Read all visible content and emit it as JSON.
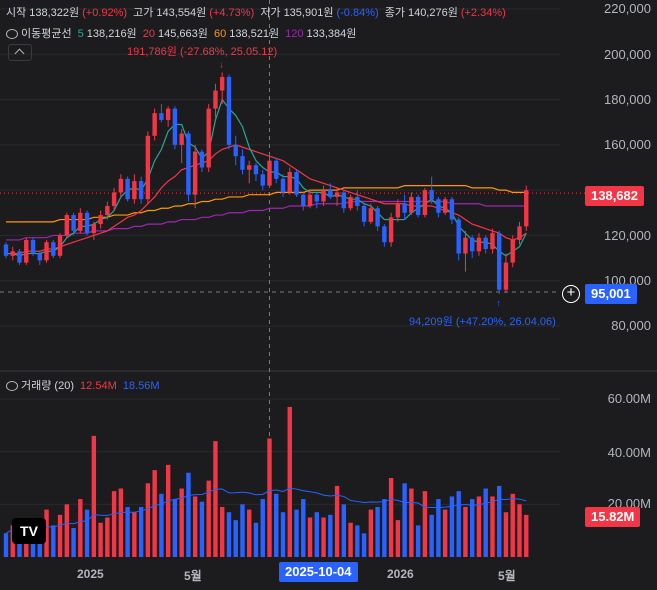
{
  "legend": {
    "open_label": "시작",
    "open_value": "138,322원",
    "open_change": "(+0.92%)",
    "high_label": "고가",
    "high_value": "143,554원",
    "high_change": "(+4.73%)",
    "low_label": "저가",
    "low_value": "135,901원",
    "low_change": "(-0.84%)",
    "close_label": "종가",
    "close_value": "140,276원",
    "close_change": "(+2.34%)",
    "ma_label": "이동평균선",
    "ma5_period": "5",
    "ma5_value": "138,216원",
    "ma20_period": "20",
    "ma20_value": "145,663원",
    "ma60_period": "60",
    "ma60_value": "138,521원",
    "ma120_period": "120",
    "ma120_value": "133,384원"
  },
  "volume_legend": {
    "label": "거래량 (20)",
    "value": "12.54M",
    "ma_value": "18.56M"
  },
  "annotations": {
    "high": "191,786원 (-27.68%, 25.05.12)",
    "low": "94,209원 (+47.20%, 26.04.06)"
  },
  "price_tags": {
    "last": "138,682",
    "crosshair": "95,001",
    "volume_last": "15.82M"
  },
  "crosshair_date": "2025-10-04",
  "logo_text": "TV",
  "colors": {
    "up": "#f23645",
    "down": "#2962ff",
    "ma5": "#26a69a",
    "ma20": "#f23645",
    "ma60": "#ff9800",
    "ma120": "#9c27b0",
    "vol_ma": "#2962ff"
  },
  "chart_data": {
    "type": "candlestick",
    "y_axis_ticks": [
      "220,000",
      "200,000",
      "180,000",
      "160,000",
      "140,000",
      "120,000",
      "100,000",
      "80,000"
    ],
    "ylim": [
      70000,
      225000
    ],
    "volume_axis_ticks": [
      "60.00M",
      "40.00M",
      "20.00M"
    ],
    "volume_ylim": [
      0,
      70000000
    ],
    "x_axis_labels": [
      "2025",
      "5월",
      "2026",
      "5월"
    ],
    "weeks": 78,
    "candles": [
      [
        116000,
        117000,
        110000,
        111000
      ],
      [
        111000,
        115000,
        109000,
        113000
      ],
      [
        113000,
        114000,
        107000,
        108000
      ],
      [
        108000,
        119000,
        107000,
        118000
      ],
      [
        118000,
        119000,
        111000,
        112000
      ],
      [
        112000,
        113000,
        107000,
        109000
      ],
      [
        109000,
        118000,
        108000,
        117000
      ],
      [
        117000,
        118000,
        110000,
        111000
      ],
      [
        111000,
        121000,
        110000,
        120000
      ],
      [
        120000,
        130000,
        119000,
        129000
      ],
      [
        129000,
        130000,
        120000,
        122000
      ],
      [
        122000,
        132000,
        121000,
        130000
      ],
      [
        130000,
        131000,
        120000,
        121000
      ],
      [
        121000,
        126000,
        118000,
        125000
      ],
      [
        125000,
        131000,
        123000,
        129000
      ],
      [
        129000,
        135000,
        127000,
        133000
      ],
      [
        133000,
        141000,
        131000,
        139000
      ],
      [
        139000,
        147000,
        137000,
        145000
      ],
      [
        145000,
        146000,
        135000,
        136000
      ],
      [
        136000,
        147000,
        134000,
        144000
      ],
      [
        144000,
        146000,
        134000,
        136000
      ],
      [
        136000,
        166000,
        134000,
        164000
      ],
      [
        164000,
        176000,
        162000,
        174000
      ],
      [
        174000,
        178000,
        170000,
        171000
      ],
      [
        171000,
        177000,
        168000,
        176000
      ],
      [
        176000,
        177000,
        158000,
        160000
      ],
      [
        160000,
        167000,
        152000,
        165000
      ],
      [
        165000,
        166000,
        135000,
        138000
      ],
      [
        138000,
        160000,
        132000,
        157000
      ],
      [
        157000,
        158000,
        148000,
        150000
      ],
      [
        150000,
        178000,
        148000,
        176000
      ],
      [
        176000,
        187000,
        172000,
        184000
      ],
      [
        184000,
        192000,
        178000,
        190000
      ],
      [
        190000,
        191000,
        158000,
        160000
      ],
      [
        160000,
        164000,
        151000,
        155000
      ],
      [
        155000,
        158000,
        147000,
        149000
      ],
      [
        149000,
        153000,
        143000,
        151000
      ],
      [
        151000,
        152000,
        144000,
        147000
      ],
      [
        147000,
        149000,
        140000,
        142000
      ],
      [
        142000,
        156000,
        141000,
        153000
      ],
      [
        153000,
        154000,
        143000,
        145000
      ],
      [
        145000,
        147000,
        137000,
        139000
      ],
      [
        139000,
        150000,
        138000,
        148000
      ],
      [
        148000,
        149000,
        137000,
        138000
      ],
      [
        138000,
        139000,
        131000,
        133000
      ],
      [
        133000,
        140000,
        132000,
        138000
      ],
      [
        138000,
        139000,
        132000,
        135000
      ],
      [
        135000,
        142000,
        133000,
        140000
      ],
      [
        140000,
        143000,
        136000,
        137000
      ],
      [
        137000,
        141000,
        133000,
        139000
      ],
      [
        139000,
        140000,
        130000,
        132000
      ],
      [
        132000,
        138000,
        131000,
        137000
      ],
      [
        137000,
        140000,
        131000,
        133000
      ],
      [
        133000,
        134000,
        124000,
        126000
      ],
      [
        126000,
        134000,
        125000,
        132000
      ],
      [
        132000,
        133000,
        122000,
        124000
      ],
      [
        124000,
        125000,
        115000,
        117000
      ],
      [
        117000,
        130000,
        115000,
        128000
      ],
      [
        128000,
        136000,
        126000,
        134000
      ],
      [
        134000,
        138000,
        127000,
        130000
      ],
      [
        130000,
        139000,
        129000,
        137000
      ],
      [
        137000,
        138000,
        128000,
        129000
      ],
      [
        129000,
        141000,
        128000,
        140000
      ],
      [
        140000,
        146000,
        134000,
        136000
      ],
      [
        136000,
        137000,
        128000,
        130000
      ],
      [
        130000,
        137000,
        129000,
        136000
      ],
      [
        136000,
        137000,
        125000,
        127000
      ],
      [
        127000,
        128000,
        109000,
        112000
      ],
      [
        112000,
        122000,
        104000,
        119000
      ],
      [
        119000,
        120000,
        110000,
        113000
      ],
      [
        113000,
        121000,
        111000,
        119000
      ],
      [
        119000,
        120000,
        112000,
        114000
      ],
      [
        114000,
        123000,
        112000,
        121000
      ],
      [
        121000,
        122000,
        94209,
        96000
      ],
      [
        96000,
        112000,
        94500,
        108000
      ],
      [
        108000,
        120000,
        106000,
        118000
      ],
      [
        118000,
        126000,
        116000,
        124000
      ],
      [
        124000,
        142000,
        122000,
        140000
      ]
    ],
    "volume": [
      9,
      12,
      8,
      14,
      10,
      9,
      18,
      12,
      16,
      20,
      11,
      22,
      18,
      46,
      13,
      15,
      25,
      26,
      19,
      17,
      19,
      28,
      33,
      24,
      35,
      22,
      26,
      32,
      23,
      21,
      29,
      44,
      19,
      17,
      14,
      20,
      18,
      13,
      22,
      45,
      24,
      17,
      57,
      18,
      22,
      15,
      17,
      15,
      16,
      27,
      20,
      13,
      12,
      9,
      18,
      19,
      22,
      30,
      14,
      28,
      26,
      12,
      25,
      16,
      22,
      18,
      23,
      25,
      19,
      22,
      23,
      26,
      23,
      27,
      17,
      24,
      20,
      16
    ],
    "volume_unit": "M",
    "ma_series": {
      "ma5": [
        112000,
        112000,
        111000,
        112000,
        112000,
        112000,
        113000,
        113000,
        115000,
        119000,
        121000,
        124000,
        124000,
        125000,
        127000,
        128000,
        131000,
        137000,
        140000,
        141000,
        140000,
        145000,
        153000,
        158000,
        166000,
        169000,
        169000,
        161000,
        159000,
        154000,
        157000,
        171000,
        180000,
        176000,
        173000,
        168000,
        159000,
        153000,
        150000,
        148000,
        148000,
        146000,
        146000,
        145000,
        141000,
        139000,
        139000,
        139000,
        137000,
        138000,
        137000,
        136000,
        136000,
        134000,
        133000,
        130000,
        127000,
        127000,
        127000,
        127000,
        130000,
        132000,
        134000,
        136000,
        133000,
        132000,
        130000,
        124000,
        121000,
        118000,
        117000,
        117000,
        116000,
        113000,
        111000,
        113000,
        115000,
        121000
      ],
      "ma20": [
        112000,
        112000,
        112000,
        113000,
        113000,
        113000,
        114000,
        114000,
        115000,
        116000,
        117000,
        118000,
        119000,
        120000,
        121000,
        122000,
        124000,
        126000,
        128000,
        129000,
        131000,
        134000,
        137000,
        141000,
        144000,
        146000,
        149000,
        150000,
        151000,
        152000,
        153000,
        156000,
        158000,
        159000,
        160000,
        159000,
        158000,
        157000,
        156000,
        155000,
        154000,
        153000,
        151000,
        149000,
        147000,
        145000,
        144000,
        143000,
        142000,
        141000,
        140000,
        139000,
        138000,
        137000,
        136000,
        135000,
        134000,
        134000,
        134000,
        134000,
        133000,
        133000,
        133000,
        133000,
        132000,
        131000,
        130000,
        129000,
        127000,
        125000,
        124000,
        123000,
        122000,
        121000,
        119000,
        118000,
        119000,
        121000
      ],
      "ma60": [
        126000,
        126000,
        126000,
        126000,
        126000,
        126000,
        126000,
        126000,
        127000,
        127000,
        127000,
        127000,
        127000,
        128000,
        128000,
        128000,
        129000,
        129000,
        129000,
        130000,
        130000,
        131000,
        131000,
        132000,
        132000,
        133000,
        133000,
        134000,
        134000,
        135000,
        135000,
        136000,
        136000,
        137000,
        137000,
        137000,
        138000,
        138000,
        138000,
        138000,
        139000,
        139000,
        139000,
        139000,
        139000,
        140000,
        140000,
        140000,
        140000,
        140000,
        141000,
        141000,
        141000,
        141000,
        141000,
        141000,
        141000,
        141000,
        141000,
        142000,
        142000,
        142000,
        142000,
        142000,
        142000,
        142000,
        142000,
        142000,
        142000,
        141000,
        141000,
        141000,
        141000,
        140000,
        140000,
        139000,
        139000,
        139000
      ],
      "ma120": [
        118000,
        118000,
        118000,
        119000,
        119000,
        119000,
        119000,
        120000,
        120000,
        120000,
        121000,
        121000,
        121000,
        122000,
        122000,
        122000,
        123000,
        123000,
        123000,
        124000,
        124000,
        125000,
        125000,
        125000,
        126000,
        126000,
        127000,
        127000,
        127000,
        128000,
        128000,
        129000,
        129000,
        130000,
        130000,
        130000,
        131000,
        131000,
        131000,
        132000,
        132000,
        132000,
        133000,
        133000,
        133000,
        133000,
        134000,
        134000,
        134000,
        134000,
        134000,
        135000,
        135000,
        135000,
        135000,
        135000,
        135000,
        135000,
        135000,
        135000,
        135000,
        135000,
        135000,
        135000,
        135000,
        135000,
        134000,
        134000,
        134000,
        134000,
        134000,
        133000,
        133000,
        133000,
        133000,
        133000,
        133000,
        133000
      ]
    },
    "last_price": 138682,
    "crosshair_price": 95001,
    "crosshair_week": 39
  }
}
